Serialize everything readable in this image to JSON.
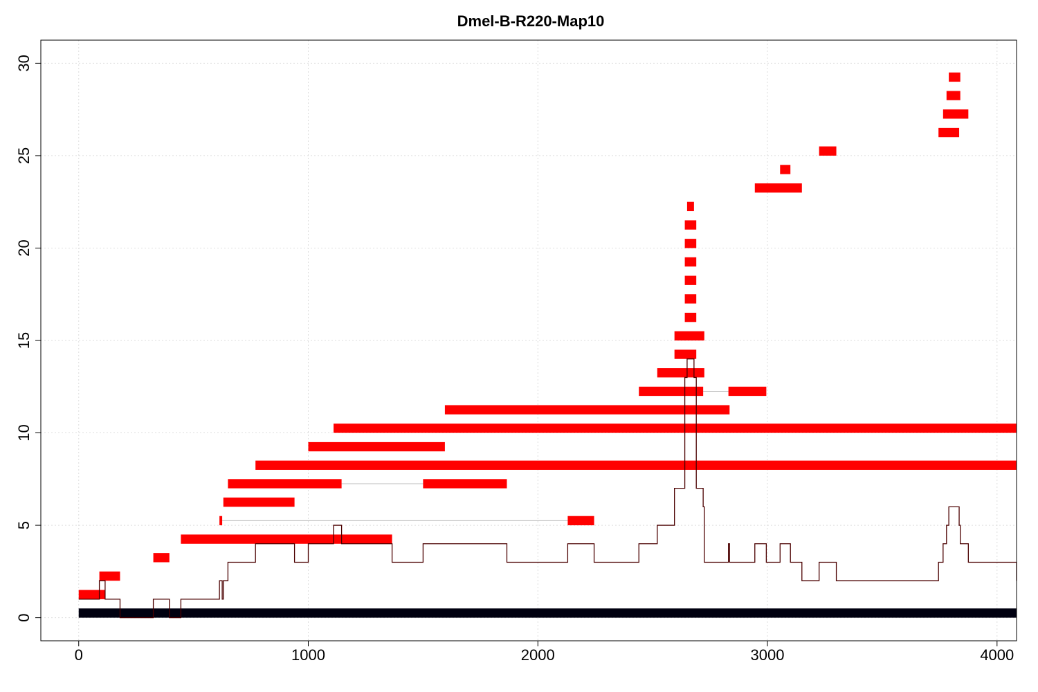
{
  "chart_data": {
    "type": "bar",
    "title": "Dmel-B-R220-Map10",
    "xlabel": "",
    "ylabel": "",
    "xlim": [
      -165,
      4085
    ],
    "ylim": [
      -1.25,
      31.25
    ],
    "x_ticks": [
      0,
      1000,
      2000,
      3000,
      4000
    ],
    "y_ticks": [
      0,
      5,
      10,
      15,
      20,
      25,
      30
    ],
    "x_tick_labels": [
      "0",
      "1000",
      "2000",
      "3000",
      "4000"
    ],
    "y_tick_labels": [
      "0",
      "5",
      "10",
      "15",
      "20",
      "25",
      "30"
    ],
    "grid": true,
    "colors": {
      "segment": "#ff0000",
      "coverage_line": "#4b0000",
      "baseline_bar": "#000010",
      "connector": "#bdbdbd",
      "grid": "#dddddd",
      "axis": "#000000"
    },
    "baseline_bar": {
      "start": 0,
      "end": 4085,
      "bottom": 0,
      "top": 0.5
    },
    "segments": [
      {
        "row": 1,
        "start": 0,
        "end": 115
      },
      {
        "row": 2,
        "start": 90,
        "end": 180
      },
      {
        "row": 3,
        "start": 325,
        "end": 395
      },
      {
        "row": 4,
        "start": 445,
        "end": 1365
      },
      {
        "row": 5,
        "start": 613,
        "end": 625
      },
      {
        "row": 5,
        "start": 2130,
        "end": 2245
      },
      {
        "row": 6,
        "start": 630,
        "end": 940
      },
      {
        "row": 7,
        "start": 650,
        "end": 1145
      },
      {
        "row": 7,
        "start": 1500,
        "end": 1865
      },
      {
        "row": 8,
        "start": 770,
        "end": 4085
      },
      {
        "row": 9,
        "start": 1000,
        "end": 1595
      },
      {
        "row": 10,
        "start": 1110,
        "end": 4085
      },
      {
        "row": 11,
        "start": 1595,
        "end": 2835
      },
      {
        "row": 12,
        "start": 2440,
        "end": 2720
      },
      {
        "row": 12,
        "start": 2830,
        "end": 2995
      },
      {
        "row": 13,
        "start": 2520,
        "end": 2725
      },
      {
        "row": 14,
        "start": 2595,
        "end": 2690
      },
      {
        "row": 15,
        "start": 2595,
        "end": 2725
      },
      {
        "row": 16,
        "start": 2640,
        "end": 2690
      },
      {
        "row": 17,
        "start": 2640,
        "end": 2690
      },
      {
        "row": 18,
        "start": 2640,
        "end": 2690
      },
      {
        "row": 19,
        "start": 2640,
        "end": 2690
      },
      {
        "row": 20,
        "start": 2640,
        "end": 2690
      },
      {
        "row": 21,
        "start": 2640,
        "end": 2690
      },
      {
        "row": 22,
        "start": 2650,
        "end": 2680
      },
      {
        "row": 23,
        "start": 2945,
        "end": 3150
      },
      {
        "row": 24,
        "start": 3055,
        "end": 3100
      },
      {
        "row": 25,
        "start": 3225,
        "end": 3300
      },
      {
        "row": 26,
        "start": 3745,
        "end": 3835
      },
      {
        "row": 27,
        "start": 3765,
        "end": 3875
      },
      {
        "row": 28,
        "start": 3780,
        "end": 3840
      },
      {
        "row": 29,
        "start": 3790,
        "end": 3840
      }
    ],
    "connectors": [
      {
        "row": 5,
        "start": 625,
        "end": 2130
      },
      {
        "row": 7,
        "start": 1145,
        "end": 1500
      },
      {
        "row": 12,
        "start": 2720,
        "end": 2830
      }
    ],
    "coverage": {
      "x": [
        0,
        90,
        115,
        180,
        325,
        395,
        445,
        613,
        625,
        630,
        650,
        770,
        940,
        1000,
        1110,
        1145,
        1365,
        1500,
        1865,
        2130,
        2245,
        2440,
        2520,
        2595,
        2640,
        2650,
        2680,
        2690,
        2720,
        2725,
        2830,
        2835,
        2945,
        2995,
        3055,
        3100,
        3150,
        3225,
        3300,
        3745,
        3765,
        3780,
        3790,
        3835,
        3840,
        3875,
        4085
      ],
      "y": [
        1,
        2,
        1,
        0,
        1,
        0,
        1,
        2,
        1,
        2,
        3,
        4,
        3,
        4,
        5,
        4,
        3,
        4,
        3,
        4,
        3,
        4,
        5,
        7,
        13,
        14,
        13,
        7,
        6,
        3,
        4,
        3,
        4,
        3,
        4,
        3,
        2,
        3,
        2,
        3,
        4,
        5,
        6,
        5,
        4,
        3,
        2
      ]
    }
  }
}
